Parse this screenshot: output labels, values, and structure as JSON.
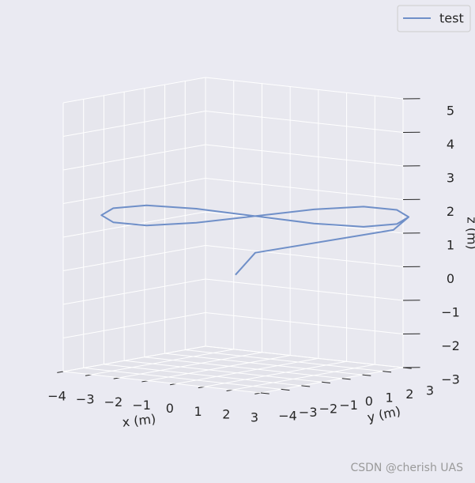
{
  "chart_data": {
    "type": "line3d",
    "series": [
      {
        "name": "test",
        "color": "#6f8fc8",
        "x": [
          0.3,
          0.5,
          2.8,
          3.2,
          2.93,
          2.17,
          1.04,
          -0.3,
          -1.64,
          -2.77,
          -3.53,
          -3.8,
          -3.53,
          -2.77,
          -1.64,
          -0.3,
          1.04,
          2.17,
          2.93,
          3.2,
          2.93,
          2.17,
          1.04,
          -0.3,
          -1.64,
          -2.77,
          -3.53,
          -3.8,
          -3.53,
          -2.77,
          -1.64,
          -0.3
        ],
        "y": [
          -1.5,
          -0.8,
          2.8,
          3.0,
          2.79,
          2.21,
          1.33,
          0.3,
          -0.73,
          -1.61,
          -2.19,
          -2.4,
          -2.19,
          -1.61,
          -0.73,
          0.3,
          1.33,
          2.21,
          2.79,
          3.0,
          2.79,
          2.21,
          1.33,
          0.3,
          -0.73,
          -1.61,
          -2.19,
          -2.4,
          -2.19,
          -1.61,
          -0.73,
          0.3
        ],
        "z": [
          0,
          0.6,
          1.1,
          1.5,
          1.29,
          1.2,
          1.29,
          1.5,
          1.71,
          1.8,
          1.71,
          1.5,
          1.29,
          1.2,
          1.29,
          1.5,
          1.71,
          1.8,
          1.71,
          1.5,
          1.29,
          1.2,
          1.29,
          1.5,
          1.71,
          1.8,
          1.71,
          1.5,
          1.29,
          1.2,
          1.29,
          1.5
        ]
      }
    ],
    "xlabel": "x (m)",
    "ylabel": "y (m)",
    "zlabel": "z (m)",
    "xlim": [
      -4,
      3
    ],
    "ylim": [
      -4,
      3
    ],
    "zlim": [
      -3,
      5
    ],
    "xticks": [
      {
        "value": -4,
        "label": "−4"
      },
      {
        "value": -3,
        "label": "−3"
      },
      {
        "value": -2,
        "label": "−2"
      },
      {
        "value": -1,
        "label": "−1"
      },
      0,
      1,
      2,
      3
    ],
    "yticks": [
      {
        "value": -4,
        "label": "−4"
      },
      {
        "value": -3,
        "label": "−3"
      },
      {
        "value": -2,
        "label": "−2"
      },
      {
        "value": -1,
        "label": "−1"
      },
      0,
      1,
      2,
      3
    ],
    "zticks": [
      {
        "value": -3,
        "label": "−3"
      },
      {
        "value": -2,
        "label": "−2"
      },
      {
        "value": -1,
        "label": "−1"
      },
      0,
      1,
      2,
      3,
      4,
      5
    ],
    "grid": true,
    "legend": "upper right"
  },
  "watermark": "CSDN @cherish UAS"
}
